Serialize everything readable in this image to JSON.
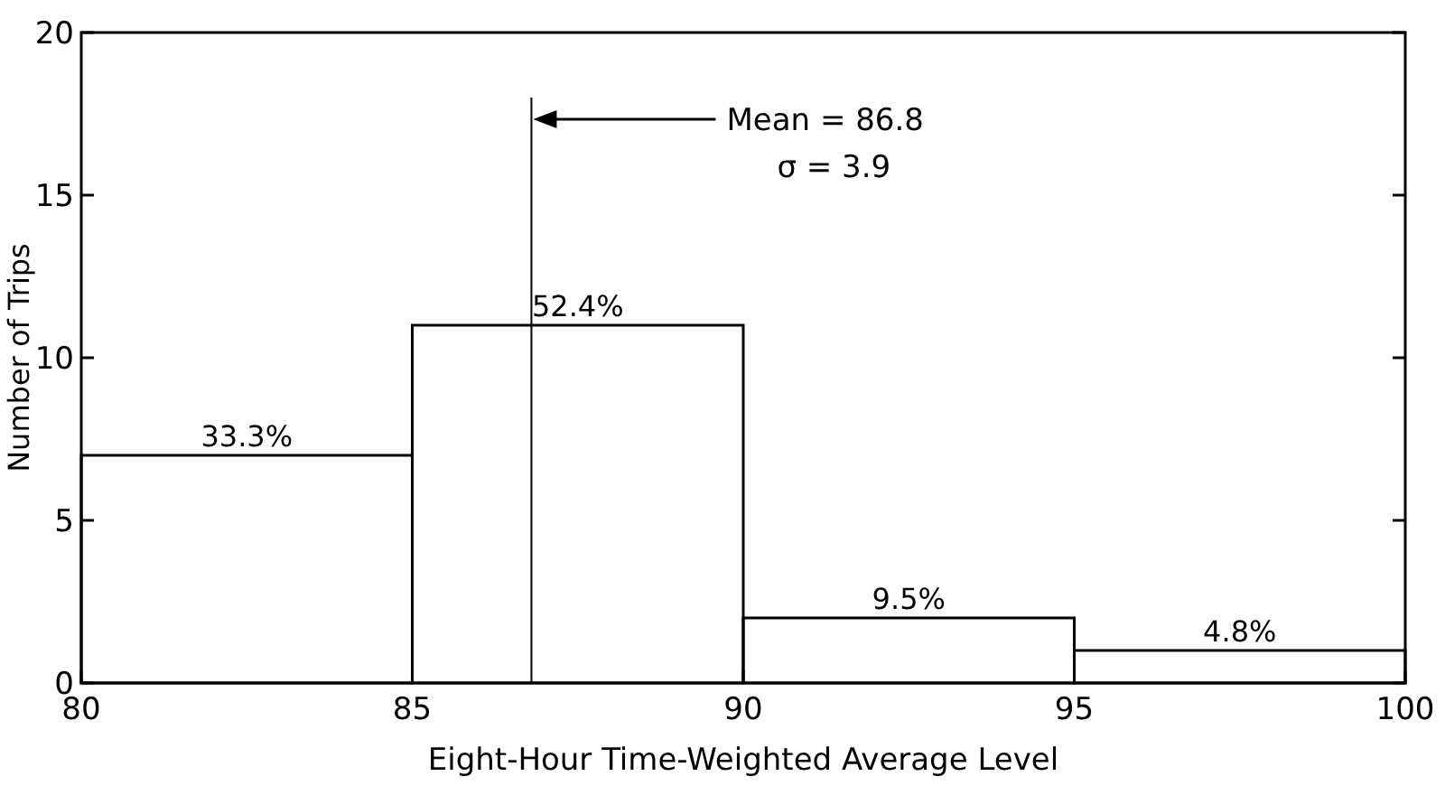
{
  "chart_data": {
    "type": "histogram",
    "xlabel": "Eight-Hour Time-Weighted Average Level",
    "ylabel": "Number of Trips",
    "bins": [
      80,
      85,
      90,
      95,
      100
    ],
    "values": [
      7,
      11,
      2,
      1
    ],
    "color": "#000000",
    "xlim": [
      80,
      100
    ],
    "xticks": [
      80,
      85,
      90,
      95,
      100
    ],
    "ylim": [
      0,
      20
    ],
    "yticks": [
      0,
      5,
      10,
      15,
      20
    ],
    "grid": false,
    "ref_lines": [
      {
        "axis": "x",
        "value": 86.8,
        "label": "Mean = 86.8"
      }
    ],
    "annotations": [
      "σ = 3.9",
      {
        "text": "33.3%",
        "x": 82.5,
        "y": 7
      },
      {
        "text": "52.4%",
        "x": 87.5,
        "y": 11
      },
      {
        "text": "9.5%",
        "x": 92.5,
        "y": 2
      },
      {
        "text": "4.8%",
        "x": 97.5,
        "y": 1
      }
    ]
  }
}
